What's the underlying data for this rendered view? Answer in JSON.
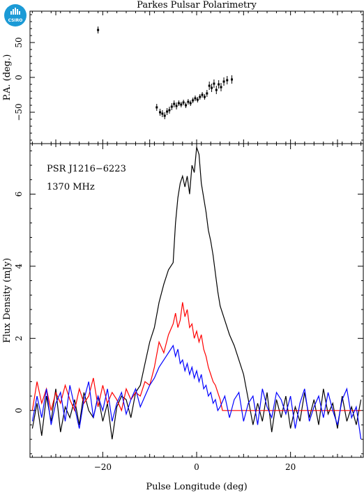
{
  "title": "Parkes Pulsar Polarimetry",
  "logo_text": "CSIRO",
  "colors": {
    "total": "#000000",
    "linear": "#ff0000",
    "circular": "#0000ff",
    "logo": "#1b9ad6"
  },
  "chart_data": [
    {
      "type": "scatter",
      "panel": "position-angle",
      "title": "Parkes Pulsar Polarimetry",
      "xlabel": "",
      "ylabel": "P.A. (deg.)",
      "xlim": [
        -35.5,
        35.5
      ],
      "ylim": [
        -95,
        95
      ],
      "yticks": [
        -50,
        0,
        50
      ],
      "points": [
        {
          "x": -21,
          "y": 68,
          "err": 5
        },
        {
          "x": -8.5,
          "y": -43,
          "err": 5
        },
        {
          "x": -7.8,
          "y": -50,
          "err": 5
        },
        {
          "x": -7.3,
          "y": -52,
          "err": 5
        },
        {
          "x": -6.8,
          "y": -55,
          "err": 5
        },
        {
          "x": -6.3,
          "y": -49,
          "err": 5
        },
        {
          "x": -5.8,
          "y": -47,
          "err": 5
        },
        {
          "x": -5.3,
          "y": -42,
          "err": 5
        },
        {
          "x": -4.8,
          "y": -38,
          "err": 5
        },
        {
          "x": -4.3,
          "y": -41,
          "err": 5
        },
        {
          "x": -3.8,
          "y": -37,
          "err": 4
        },
        {
          "x": -3.3,
          "y": -39,
          "err": 4
        },
        {
          "x": -2.8,
          "y": -36,
          "err": 4
        },
        {
          "x": -2.3,
          "y": -40,
          "err": 4
        },
        {
          "x": -1.8,
          "y": -35,
          "err": 4
        },
        {
          "x": -1.3,
          "y": -37,
          "err": 4
        },
        {
          "x": -0.8,
          "y": -33,
          "err": 4
        },
        {
          "x": -0.3,
          "y": -30,
          "err": 4
        },
        {
          "x": 0.2,
          "y": -32,
          "err": 4
        },
        {
          "x": 0.7,
          "y": -28,
          "err": 4
        },
        {
          "x": 1.2,
          "y": -25,
          "err": 4
        },
        {
          "x": 1.7,
          "y": -28,
          "err": 4
        },
        {
          "x": 2.2,
          "y": -23,
          "err": 5
        },
        {
          "x": 2.7,
          "y": -12,
          "err": 6
        },
        {
          "x": 3.2,
          "y": -15,
          "err": 6
        },
        {
          "x": 3.7,
          "y": -9,
          "err": 6
        },
        {
          "x": 4.2,
          "y": -18,
          "err": 6
        },
        {
          "x": 4.7,
          "y": -10,
          "err": 6
        },
        {
          "x": 5.2,
          "y": -14,
          "err": 6
        },
        {
          "x": 5.8,
          "y": -6,
          "err": 6
        },
        {
          "x": 6.5,
          "y": -4,
          "err": 6
        },
        {
          "x": 7.5,
          "y": -3,
          "err": 6
        }
      ]
    },
    {
      "type": "line",
      "panel": "profile",
      "xlabel": "Pulse Longitude (deg)",
      "ylabel": "Flux Density (mJy)",
      "xlim": [
        -35.5,
        35.5
      ],
      "ylim": [
        -1.3,
        7.4
      ],
      "xticks": [
        -20,
        0,
        20
      ],
      "yticks": [
        0,
        2,
        4,
        6
      ],
      "annotations": [
        "PSR J1216−6223",
        "1370 MHz"
      ],
      "series": [
        {
          "color": "#000000",
          "x": [
            -35,
            -34,
            -33,
            -32,
            -31,
            -30,
            -29,
            -28,
            -27,
            -26,
            -25,
            -24,
            -23,
            -22,
            -21,
            -20,
            -19,
            -18,
            -17,
            -16,
            -15,
            -14,
            -13,
            -12,
            -11,
            -10,
            -9,
            -8,
            -7,
            -6,
            -5,
            -4.5,
            -4,
            -3.5,
            -3,
            -2.5,
            -2,
            -1.5,
            -1,
            -0.5,
            0,
            0.5,
            1,
            1.5,
            2,
            2.5,
            3,
            3.5,
            4,
            4.5,
            5,
            6,
            7,
            8,
            9,
            10,
            11,
            12,
            13,
            14,
            15,
            16,
            17,
            18,
            19,
            20,
            21,
            22,
            23,
            24,
            25,
            26,
            27,
            28,
            29,
            30,
            31,
            32,
            33,
            34,
            35
          ],
          "y": [
            -0.5,
            0.2,
            -0.7,
            0.4,
            -0.3,
            0.6,
            -0.6,
            0.1,
            -0.2,
            0.3,
            -0.4,
            0.5,
            0.0,
            -0.2,
            0.4,
            -0.3,
            0.2,
            -0.8,
            0.1,
            0.4,
            0.3,
            -0.2,
            0.5,
            0.7,
            1.3,
            1.9,
            2.3,
            3.0,
            3.5,
            3.9,
            4.1,
            5.2,
            5.9,
            6.3,
            6.5,
            6.2,
            6.5,
            6.0,
            6.8,
            6.6,
            7.3,
            7.1,
            6.3,
            5.9,
            5.5,
            5.0,
            4.7,
            4.3,
            3.8,
            3.3,
            2.9,
            2.5,
            2.1,
            1.8,
            1.4,
            1.0,
            0.3,
            -0.4,
            0.2,
            -0.3,
            0.5,
            -0.6,
            0.3,
            -0.2,
            0.4,
            -0.5,
            0.1,
            -0.3,
            0.5,
            -0.2,
            0.3,
            -0.4,
            0.6,
            -0.1,
            0.2,
            -0.5,
            0.4,
            -0.3,
            0.1,
            -0.4,
            0.3
          ]
        },
        {
          "color": "#ff0000",
          "x": [
            -35,
            -34,
            -33,
            -32,
            -31,
            -30,
            -29,
            -28,
            -27,
            -26,
            -25,
            -24,
            -23,
            -22,
            -21,
            -20,
            -19,
            -18,
            -17,
            -16,
            -15,
            -14,
            -13,
            -12,
            -11,
            -10,
            -9,
            -8,
            -7,
            -6,
            -5,
            -4.5,
            -4,
            -3.5,
            -3,
            -2.5,
            -2,
            -1.5,
            -1,
            -0.5,
            0,
            0.5,
            1,
            1.5,
            2,
            2.5,
            3,
            3.5,
            4,
            4.5,
            5,
            5.5,
            6,
            7,
            8,
            9,
            10,
            11,
            12,
            13,
            14,
            15,
            16,
            17,
            18,
            19,
            20,
            21,
            22,
            23,
            24,
            25,
            26,
            27,
            28,
            29,
            30,
            31,
            32,
            33,
            34,
            35
          ],
          "y": [
            0.0,
            0.8,
            0.2,
            0.6,
            0.0,
            0.5,
            0.2,
            0.7,
            0.3,
            0.0,
            0.6,
            0.2,
            0.4,
            0.9,
            0.1,
            0.7,
            0.2,
            0.5,
            0.3,
            0.0,
            0.6,
            0.3,
            0.5,
            0.4,
            0.8,
            0.7,
            1.2,
            1.9,
            1.6,
            2.1,
            2.4,
            2.7,
            2.3,
            2.5,
            3.0,
            2.6,
            2.8,
            2.3,
            2.4,
            2.0,
            2.2,
            1.9,
            2.1,
            1.7,
            1.5,
            1.2,
            1.0,
            0.8,
            0.7,
            0.5,
            0.3,
            0.0,
            0.0,
            0.0,
            0.0,
            0.0,
            0.0,
            0.0,
            0.0,
            0.0,
            0.0,
            0.0,
            0.0,
            0.0,
            0.0,
            0.0,
            0.0,
            0.0,
            0.0,
            0.0,
            0.0,
            0.0,
            0.0,
            0.0,
            0.0,
            0.0,
            0.0,
            0.0,
            0.0,
            0.0,
            0.0,
            0.0
          ]
        },
        {
          "color": "#0000ff",
          "x": [
            -35,
            -34,
            -33,
            -32,
            -31,
            -30,
            -29,
            -28,
            -27,
            -26,
            -25,
            -24,
            -23,
            -22,
            -21,
            -20,
            -19,
            -18,
            -17,
            -16,
            -15,
            -14,
            -13,
            -12,
            -11,
            -10,
            -9,
            -8,
            -7,
            -6,
            -5,
            -4.5,
            -4,
            -3.5,
            -3,
            -2.5,
            -2,
            -1.5,
            -1,
            -0.5,
            0,
            0.5,
            1,
            1.5,
            2,
            2.5,
            3,
            3.5,
            4,
            4.5,
            5,
            6,
            7,
            8,
            9,
            10,
            11,
            12,
            13,
            14,
            15,
            16,
            17,
            18,
            19,
            20,
            21,
            22,
            23,
            24,
            25,
            26,
            27,
            28,
            29,
            30,
            31,
            32,
            33,
            34,
            35
          ],
          "y": [
            -0.3,
            0.4,
            -0.2,
            0.6,
            -0.4,
            0.2,
            0.5,
            -0.3,
            0.7,
            0.1,
            -0.5,
            0.3,
            0.8,
            -0.2,
            0.4,
            0.0,
            0.6,
            -0.3,
            0.2,
            0.5,
            -0.1,
            0.3,
            0.6,
            0.1,
            0.4,
            0.7,
            0.9,
            1.2,
            1.4,
            1.6,
            1.8,
            1.5,
            1.7,
            1.3,
            1.4,
            1.1,
            1.3,
            1.0,
            1.2,
            0.9,
            1.1,
            0.8,
            1.0,
            0.6,
            0.7,
            0.4,
            0.5,
            0.2,
            0.3,
            0.0,
            0.1,
            0.4,
            -0.2,
            0.3,
            0.5,
            -0.3,
            0.2,
            0.4,
            -0.4,
            0.6,
            0.1,
            -0.2,
            0.5,
            0.3,
            -0.1,
            0.4,
            -0.5,
            0.2,
            0.6,
            -0.3,
            0.1,
            0.4,
            -0.2,
            0.5,
            0.0,
            -0.4,
            0.3,
            0.6,
            -0.2,
            0.1,
            -0.8
          ]
        }
      ]
    }
  ]
}
